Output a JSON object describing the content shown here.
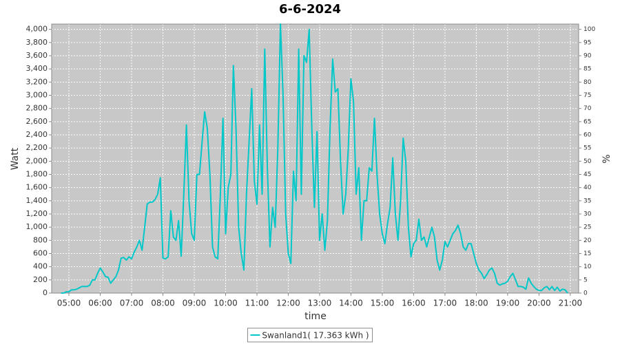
{
  "chart_data": {
    "type": "line",
    "title": "6-6-2024",
    "x_label": "time",
    "y_label": "Watt",
    "y2_label": "%",
    "x": [
      "04:45",
      "04:50",
      "04:55",
      "05:00",
      "05:05",
      "05:10",
      "05:15",
      "05:20",
      "05:25",
      "05:30",
      "05:35",
      "05:40",
      "05:45",
      "05:50",
      "05:55",
      "06:00",
      "06:05",
      "06:10",
      "06:15",
      "06:20",
      "06:25",
      "06:30",
      "06:35",
      "06:40",
      "06:45",
      "06:50",
      "06:55",
      "07:00",
      "07:05",
      "07:10",
      "07:15",
      "07:20",
      "07:25",
      "07:30",
      "07:35",
      "07:40",
      "07:45",
      "07:50",
      "07:55",
      "08:00",
      "08:05",
      "08:10",
      "08:15",
      "08:20",
      "08:25",
      "08:30",
      "08:35",
      "08:40",
      "08:45",
      "08:50",
      "08:55",
      "09:00",
      "09:05",
      "09:10",
      "09:15",
      "09:20",
      "09:25",
      "09:30",
      "09:35",
      "09:40",
      "09:45",
      "09:50",
      "09:55",
      "10:00",
      "10:05",
      "10:10",
      "10:15",
      "10:20",
      "10:25",
      "10:30",
      "10:35",
      "10:40",
      "10:45",
      "10:50",
      "10:55",
      "11:00",
      "11:05",
      "11:10",
      "11:15",
      "11:20",
      "11:25",
      "11:30",
      "11:35",
      "11:40",
      "11:45",
      "11:50",
      "11:55",
      "12:00",
      "12:05",
      "12:10",
      "12:15",
      "12:20",
      "12:25",
      "12:30",
      "12:35",
      "12:40",
      "12:45",
      "12:50",
      "12:55",
      "13:00",
      "13:05",
      "13:10",
      "13:15",
      "13:20",
      "13:25",
      "13:30",
      "13:35",
      "13:40",
      "13:45",
      "13:50",
      "13:55",
      "14:00",
      "14:05",
      "14:10",
      "14:15",
      "14:20",
      "14:25",
      "14:30",
      "14:35",
      "14:40",
      "14:45",
      "14:50",
      "14:55",
      "15:00",
      "15:05",
      "15:10",
      "15:15",
      "15:20",
      "15:25",
      "15:30",
      "15:35",
      "15:40",
      "15:45",
      "15:50",
      "15:55",
      "16:00",
      "16:05",
      "16:10",
      "16:15",
      "16:20",
      "16:25",
      "16:30",
      "16:35",
      "16:40",
      "16:45",
      "16:50",
      "16:55",
      "17:00",
      "17:05",
      "17:10",
      "17:15",
      "17:20",
      "17:25",
      "17:30",
      "17:35",
      "17:40",
      "17:45",
      "17:50",
      "17:55",
      "18:00",
      "18:05",
      "18:10",
      "18:15",
      "18:20",
      "18:25",
      "18:30",
      "18:35",
      "18:40",
      "18:45",
      "18:50",
      "18:55",
      "19:00",
      "19:05",
      "19:10",
      "19:15",
      "19:20",
      "19:25",
      "19:30",
      "19:35",
      "19:40",
      "19:45",
      "19:50",
      "19:55",
      "20:00",
      "20:05",
      "20:10",
      "20:15",
      "20:20",
      "20:25",
      "20:30",
      "20:35",
      "20:40",
      "20:45",
      "20:50",
      "20:55"
    ],
    "series": [
      {
        "name": "Swanland1( 17.363 kWh )",
        "color": "#00c8c8",
        "values": [
          0,
          0,
          20,
          20,
          50,
          50,
          60,
          80,
          100,
          100,
          100,
          120,
          200,
          200,
          300,
          380,
          320,
          250,
          240,
          150,
          200,
          250,
          350,
          530,
          540,
          500,
          550,
          520,
          620,
          700,
          800,
          650,
          1000,
          1350,
          1380,
          1380,
          1420,
          1500,
          1750,
          530,
          520,
          550,
          1250,
          850,
          800,
          1100,
          560,
          1500,
          2550,
          1400,
          900,
          800,
          1800,
          1800,
          2300,
          2750,
          2500,
          1800,
          700,
          550,
          520,
          1500,
          2650,
          900,
          1600,
          1800,
          3450,
          2500,
          1000,
          600,
          350,
          1500,
          2300,
          3100,
          1700,
          1350,
          2550,
          1500,
          3700,
          1900,
          700,
          1300,
          1000,
          2200,
          4080,
          3000,
          1200,
          600,
          450,
          1850,
          1400,
          3700,
          1500,
          3600,
          3500,
          4000,
          2500,
          1300,
          2450,
          800,
          1200,
          650,
          1100,
          2500,
          3550,
          3050,
          3100,
          2000,
          1200,
          1500,
          2200,
          3250,
          2900,
          1500,
          1900,
          800,
          1400,
          1400,
          1900,
          1850,
          2650,
          1800,
          1200,
          900,
          750,
          1050,
          1300,
          2050,
          1200,
          800,
          1400,
          2350,
          2000,
          1000,
          550,
          750,
          800,
          1120,
          800,
          850,
          700,
          850,
          1000,
          850,
          500,
          350,
          500,
          780,
          700,
          800,
          900,
          950,
          1030,
          900,
          700,
          650,
          750,
          750,
          600,
          450,
          350,
          300,
          220,
          280,
          350,
          380,
          300,
          150,
          120,
          140,
          150,
          180,
          250,
          300,
          200,
          100,
          100,
          90,
          60,
          230,
          150,
          100,
          60,
          40,
          40,
          80,
          100,
          50,
          100,
          40,
          90,
          30,
          60,
          50,
          0
        ]
      }
    ],
    "xlim": [
      "04:27",
      "21:16"
    ],
    "xticks": [
      "05:00",
      "06:00",
      "07:00",
      "08:00",
      "09:00",
      "10:00",
      "11:00",
      "12:00",
      "13:00",
      "14:00",
      "15:00",
      "16:00",
      "17:00",
      "18:00",
      "19:00",
      "20:00",
      "21:00"
    ],
    "ylim": [
      0,
      4080
    ],
    "yticks": [
      0,
      200,
      400,
      600,
      800,
      {
        "value": 1000,
        "label": "1,000"
      },
      {
        "value": 1200,
        "label": "1,200"
      },
      {
        "value": 1400,
        "label": "1,400"
      },
      {
        "value": 1600,
        "label": "1,600"
      },
      {
        "value": 1800,
        "label": "1,800"
      },
      {
        "value": 2000,
        "label": "2,000"
      },
      {
        "value": 2200,
        "label": "2,200"
      },
      {
        "value": 2400,
        "label": "2,400"
      },
      {
        "value": 2600,
        "label": "2,600"
      },
      {
        "value": 2800,
        "label": "2,800"
      },
      {
        "value": 3000,
        "label": "3,000"
      },
      {
        "value": 3200,
        "label": "3,200"
      },
      {
        "value": 3400,
        "label": "3,400"
      },
      {
        "value": 3600,
        "label": "3,600"
      },
      {
        "value": 3800,
        "label": "3,800"
      },
      {
        "value": 4000,
        "label": "4,000"
      }
    ],
    "y2lim": [
      0,
      102
    ],
    "y2ticks": [
      0,
      5,
      10,
      15,
      20,
      25,
      30,
      35,
      40,
      45,
      50,
      55,
      60,
      65,
      70,
      75,
      80,
      85,
      90,
      95,
      100
    ],
    "grid": true,
    "legend": "bottom"
  }
}
